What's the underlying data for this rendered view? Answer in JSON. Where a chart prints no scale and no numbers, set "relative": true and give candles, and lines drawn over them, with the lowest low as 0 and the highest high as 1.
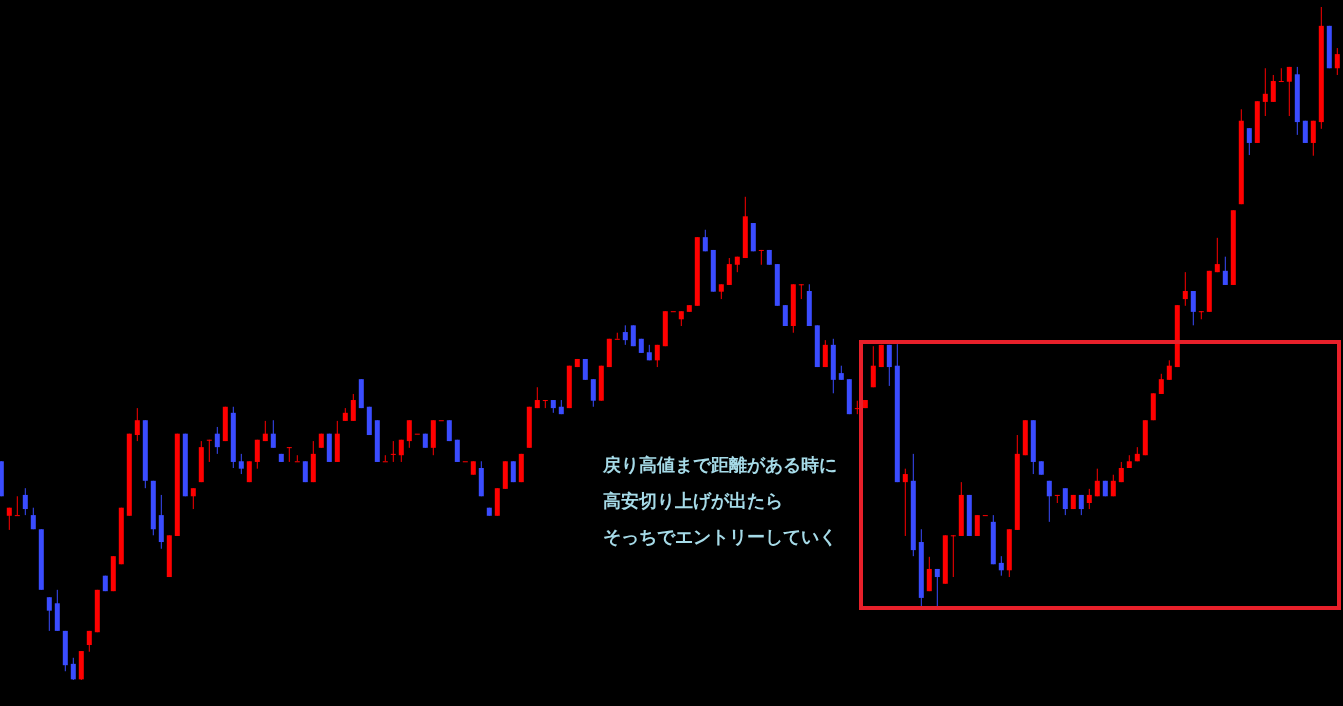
{
  "chart_data": {
    "type": "candlestick",
    "relative": true,
    "colors": [
      "#3a4cff",
      "#ff0000",
      "#ff0000",
      "#3a4cff",
      "#3a4cff",
      "#3a4cff",
      "#3a4cff",
      "#3a4cff",
      "#3a4cff",
      "#3a4cff",
      "#ff0000",
      "#ff0000",
      "#ff0000",
      "#3a4cff",
      "#ff0000",
      "#ff0000",
      "#ff0000",
      "#ff0000",
      "#3a4cff",
      "#3a4cff",
      "#3a4cff",
      "#ff0000",
      "#ff0000",
      "#3a4cff",
      "#ff0000",
      "#ff0000",
      "#ff0000",
      "#3a4cff",
      "#ff0000",
      "#3a4cff",
      "#3a4cff",
      "#ff0000",
      "#ff0000",
      "#ff0000",
      "#3a4cff",
      "#3a4cff",
      "#ff0000",
      "#ff0000",
      "#3a4cff",
      "#ff0000",
      "#ff0000",
      "#3a4cff",
      "#ff0000",
      "#ff0000",
      "#ff0000",
      "#3a4cff",
      "#3a4cff",
      "#3a4cff",
      "#ff0000",
      "#ff0000",
      "#ff0000",
      "#ff0000",
      "#ff0000",
      "#3a4cff",
      "#ff0000",
      "#ff0000",
      "#3a4cff",
      "#3a4cff",
      "#ff0000",
      "#ff0000",
      "#3a4cff",
      "#3a4cff",
      "#ff0000",
      "#ff0000",
      "#3a4cff",
      "#ff0000",
      "#ff0000",
      "#ff0000",
      "#ff0000",
      "#3a4cff",
      "#3a4cff",
      "#ff0000",
      "#ff0000",
      "#3a4cff",
      "#3a4cff",
      "#ff0000",
      "#ff0000",
      "#ff0000",
      "#3a4cff",
      "#3a4cff",
      "#3a4cff",
      "#3a4cff",
      "#ff0000",
      "#ff0000",
      "#ff0000",
      "#ff0000",
      "#ff0000",
      "#ff0000",
      "#3a4cff",
      "#3a4cff",
      "#ff0000",
      "#ff0000",
      "#ff0000",
      "#ff0000",
      "#3a4cff",
      "#ff0000",
      "#3a4cff",
      "#3a4cff",
      "#3a4cff",
      "#ff0000",
      "#ff0000",
      "#3a4cff",
      "#3a4cff",
      "#ff0000",
      "#3a4cff",
      "#3a4cff",
      "#3a4cff",
      "#ff0000",
      "#ff0000",
      "#ff0000",
      "#ff0000",
      "#3a4cff",
      "#3a4cff",
      "#ff0000",
      "#3a4cff",
      "#3a4cff",
      "#ff0000",
      "#3a4cff",
      "#ff0000",
      "#ff0000",
      "#ff0000",
      "#3a4cff",
      "#ff0000",
      "#ff0000",
      "#3a4cff",
      "#3a4cff",
      "#ff0000",
      "#ff0000",
      "#ff0000",
      "#3a4cff",
      "#3a4cff",
      "#3a4cff",
      "#ff0000",
      "#3a4cff",
      "#ff0000",
      "#3a4cff",
      "#ff0000",
      "#ff0000",
      "#3a4cff",
      "#ff0000",
      "#ff0000",
      "#ff0000",
      "#ff0000",
      "#ff0000",
      "#ff0000",
      "#ff0000",
      "#ff0000",
      "#ff0000",
      "#ff0000",
      "#3a4cff",
      "#ff0000",
      "#ff0000",
      "#ff0000",
      "#3a4cff",
      "#ff0000",
      "#ff0000",
      "#3a4cff",
      "#ff0000",
      "#ff0000",
      "#ff0000",
      "#ff0000",
      "#ff0000",
      "#3a4cff",
      "#3a4cff",
      "#ff0000",
      "#ff0000",
      "#3a4cff",
      "#ff0000"
    ],
    "annotations": [
      "戻り高値まで距離がある時に",
      "高安切り上げが出たら",
      "そっちでエントリーしていく"
    ],
    "categories": [
      null,
      null,
      null,
      null,
      null,
      null,
      null,
      null,
      null,
      null,
      null,
      null,
      null,
      null,
      null,
      null,
      null,
      null,
      null,
      null,
      null,
      null,
      null,
      null,
      null,
      null,
      null,
      null,
      null,
      null,
      null,
      null,
      null,
      null,
      null,
      null,
      null,
      null,
      null,
      null,
      null,
      null,
      null,
      null,
      null,
      null,
      null,
      null,
      null,
      null,
      null,
      null,
      null,
      null,
      null,
      null,
      null,
      null,
      null,
      null,
      null,
      null,
      null,
      null,
      null,
      null,
      null,
      null,
      null,
      null,
      null,
      null,
      null,
      null,
      null,
      null,
      null,
      null,
      null,
      null,
      null,
      null,
      null,
      null,
      null,
      null,
      null,
      null,
      null,
      null,
      null,
      null,
      null,
      null,
      null,
      null,
      null,
      null,
      null,
      null,
      null,
      null,
      null,
      null,
      null,
      null,
      null,
      null,
      null,
      null,
      null,
      null,
      null,
      null,
      null,
      null,
      null,
      null,
      null,
      null,
      null,
      null,
      null,
      null,
      null,
      null,
      null,
      null,
      null,
      null,
      null,
      null,
      null,
      null,
      null,
      null,
      null,
      null,
      null,
      null,
      null,
      null,
      null,
      null,
      null,
      null,
      null,
      null,
      null,
      null,
      null,
      null,
      null,
      null,
      null,
      null,
      null,
      null,
      null,
      null,
      null,
      null,
      null,
      null,
      null,
      null,
      null,
      null
    ],
    "ohlc": [
      [
        0.325,
        0.325,
        0.273,
        0.273
      ],
      [
        0.244,
        0.256,
        0.223,
        0.256
      ],
      [
        0.245,
        0.273,
        0.245,
        0.245
      ],
      [
        0.275,
        0.285,
        0.245,
        0.254
      ],
      [
        0.245,
        0.256,
        0.224,
        0.224
      ],
      [
        0.224,
        0.224,
        0.134,
        0.134
      ],
      [
        0.123,
        0.123,
        0.073,
        0.103
      ],
      [
        0.114,
        0.134,
        0.073,
        0.073
      ],
      [
        0.073,
        0.073,
        0.013,
        0.022
      ],
      [
        0.024,
        0.033,
        0,
        0.001
      ],
      [
        0.001,
        0.043,
        0,
        0.043
      ],
      [
        0.052,
        0.073,
        0.042,
        0.073
      ],
      [
        0.071,
        0.134,
        0.071,
        0.134
      ],
      [
        0.155,
        0.155,
        0.132,
        0.132
      ],
      [
        0.132,
        0.184,
        0.132,
        0.184
      ],
      [
        0.172,
        0.256,
        0.172,
        0.256
      ],
      [
        0.244,
        0.366,
        0.244,
        0.366
      ],
      [
        0.364,
        0.404,
        0.355,
        0.386
      ],
      [
        0.386,
        0.386,
        0.285,
        0.296
      ],
      [
        0.296,
        0.296,
        0.215,
        0.224
      ],
      [
        0.245,
        0.275,
        0.195,
        0.205
      ],
      [
        0.153,
        0.215,
        0.153,
        0.215
      ],
      [
        0.214,
        0.366,
        0.214,
        0.366
      ],
      [
        0.366,
        0.366,
        0.273,
        0.273
      ],
      [
        0.273,
        0.285,
        0.254,
        0.285
      ],
      [
        0.294,
        0.355,
        0.294,
        0.346
      ],
      [
        0.357,
        0.357,
        0.324,
        0.357
      ],
      [
        0.366,
        0.376,
        0.336,
        0.346
      ],
      [
        0.355,
        0.406,
        0.355,
        0.406
      ],
      [
        0.397,
        0.406,
        0.315,
        0.324
      ],
      [
        0.325,
        0.336,
        0.306,
        0.314
      ],
      [
        0.294,
        0.325,
        0.294,
        0.325
      ],
      [
        0.324,
        0.357,
        0.314,
        0.357
      ],
      [
        0.355,
        0.385,
        0.355,
        0.366
      ],
      [
        0.366,
        0.386,
        0.345,
        0.345
      ],
      [
        0.336,
        0.336,
        0.324,
        0.324
      ],
      [
        0.346,
        0.346,
        0.324,
        0.346
      ],
      [
        0.325,
        0.334,
        0.325,
        0.325
      ],
      [
        0.325,
        0.325,
        0.294,
        0.294
      ],
      [
        0.294,
        0.355,
        0.294,
        0.336
      ],
      [
        0.345,
        0.366,
        0.345,
        0.366
      ],
      [
        0.366,
        0.366,
        0.324,
        0.324
      ],
      [
        0.324,
        0.385,
        0.324,
        0.366
      ],
      [
        0.385,
        0.404,
        0.385,
        0.397
      ],
      [
        0.385,
        0.425,
        0.385,
        0.416
      ],
      [
        0.447,
        0.447,
        0.404,
        0.404
      ],
      [
        0.406,
        0.406,
        0.364,
        0.364
      ],
      [
        0.386,
        0.386,
        0.324,
        0.324
      ],
      [
        0.325,
        0.334,
        0.325,
        0.325
      ],
      [
        0.336,
        0.355,
        0.324,
        0.336
      ],
      [
        0.334,
        0.357,
        0.324,
        0.357
      ],
      [
        0.355,
        0.386,
        0.345,
        0.386
      ],
      [
        0.366,
        0.366,
        0.366,
        0.366
      ],
      [
        0.366,
        0.366,
        0.345,
        0.345
      ],
      [
        0.345,
        0.386,
        0.334,
        0.386
      ],
      [
        0.386,
        0.386,
        0.386,
        0.386
      ],
      [
        0.386,
        0.386,
        0.355,
        0.355
      ],
      [
        0.357,
        0.357,
        0.324,
        0.324
      ],
      [
        0.325,
        0.325,
        0.325,
        0.325
      ],
      [
        0.305,
        0.325,
        0.305,
        0.325
      ],
      [
        0.315,
        0.325,
        0.273,
        0.273
      ],
      [
        0.256,
        0.256,
        0.244,
        0.244
      ],
      [
        0.244,
        0.285,
        0.244,
        0.285
      ],
      [
        0.284,
        0.325,
        0.284,
        0.325
      ],
      [
        0.325,
        0.325,
        0.294,
        0.294
      ],
      [
        0.294,
        0.336,
        0.294,
        0.336
      ],
      [
        0.345,
        0.406,
        0.345,
        0.406
      ],
      [
        0.404,
        0.435,
        0.404,
        0.416
      ],
      [
        0.416,
        0.416,
        0.404,
        0.416
      ],
      [
        0.416,
        0.416,
        0.397,
        0.404
      ],
      [
        0.406,
        0.416,
        0.395,
        0.395
      ],
      [
        0.404,
        0.467,
        0.404,
        0.467
      ],
      [
        0.465,
        0.477,
        0.465,
        0.477
      ],
      [
        0.477,
        0.477,
        0.446,
        0.446
      ],
      [
        0.447,
        0.447,
        0.406,
        0.415
      ],
      [
        0.415,
        0.467,
        0.415,
        0.467
      ],
      [
        0.465,
        0.507,
        0.465,
        0.507
      ],
      [
        0.507,
        0.516,
        0.507,
        0.507
      ],
      [
        0.517,
        0.527,
        0.498,
        0.505
      ],
      [
        0.527,
        0.527,
        0.496,
        0.496
      ],
      [
        0.507,
        0.507,
        0.486,
        0.486
      ],
      [
        0.487,
        0.498,
        0.475,
        0.475
      ],
      [
        0.475,
        0.498,
        0.465,
        0.498
      ],
      [
        0.496,
        0.548,
        0.496,
        0.548
      ],
      [
        0.548,
        0.548,
        0.548,
        0.548
      ],
      [
        0.536,
        0.548,
        0.526,
        0.548
      ],
      [
        0.547,
        0.557,
        0.547,
        0.557
      ],
      [
        0.556,
        0.658,
        0.556,
        0.658
      ],
      [
        0.658,
        0.669,
        0.637,
        0.637
      ],
      [
        0.639,
        0.639,
        0.577,
        0.577
      ],
      [
        0.577,
        0.588,
        0.566,
        0.588
      ],
      [
        0.587,
        0.627,
        0.587,
        0.618
      ],
      [
        0.617,
        0.629,
        0.606,
        0.629
      ],
      [
        0.627,
        0.718,
        0.627,
        0.689
      ],
      [
        0.679,
        0.679,
        0.637,
        0.637
      ],
      [
        0.639,
        0.639,
        0.617,
        0.639
      ],
      [
        0.639,
        0.639,
        0.617,
        0.617
      ],
      [
        0.618,
        0.618,
        0.556,
        0.556
      ],
      [
        0.557,
        0.557,
        0.526,
        0.526
      ],
      [
        0.526,
        0.588,
        0.516,
        0.588
      ],
      [
        0.588,
        0.588,
        0.566,
        0.588
      ],
      [
        0.578,
        0.588,
        0.526,
        0.526
      ],
      [
        0.527,
        0.527,
        0.465,
        0.465
      ],
      [
        0.465,
        0.505,
        0.465,
        0.498
      ],
      [
        0.498,
        0.507,
        0.426,
        0.446
      ],
      [
        0.456,
        0.467,
        0.446,
        0.446
      ],
      [
        0.447,
        0.447,
        0.395,
        0.395
      ],
      [
        0.404,
        0.415,
        0.395,
        0.404
      ],
      [
        0.404,
        0.416,
        0.404,
        0.416
      ],
      [
        0.435,
        0.496,
        0.435,
        0.467
      ],
      [
        0.465,
        0.498,
        0.465,
        0.498
      ],
      [
        0.498,
        0.498,
        0.437,
        0.465
      ],
      [
        0.467,
        0.499,
        0.294,
        0.294
      ],
      [
        0.294,
        0.314,
        0.214,
        0.306
      ],
      [
        0.296,
        0.336,
        0.184,
        0.193
      ],
      [
        0.205,
        0.224,
        0.108,
        0.122
      ],
      [
        0.132,
        0.183,
        0.132,
        0.165
      ],
      [
        0.165,
        0.165,
        0.108,
        0.153
      ],
      [
        0.143,
        0.215,
        0.143,
        0.215
      ],
      [
        0.215,
        0.215,
        0.153,
        0.215
      ],
      [
        0.214,
        0.294,
        0.214,
        0.275
      ],
      [
        0.275,
        0.275,
        0.214,
        0.214
      ],
      [
        0.214,
        0.245,
        0.214,
        0.245
      ],
      [
        0.245,
        0.245,
        0.245,
        0.245
      ],
      [
        0.235,
        0.245,
        0.172,
        0.172
      ],
      [
        0.174,
        0.184,
        0.155,
        0.163
      ],
      [
        0.163,
        0.224,
        0.153,
        0.224
      ],
      [
        0.223,
        0.364,
        0.223,
        0.336
      ],
      [
        0.334,
        0.386,
        0.334,
        0.386
      ],
      [
        0.386,
        0.386,
        0.306,
        0.324
      ],
      [
        0.325,
        0.325,
        0.305,
        0.305
      ],
      [
        0.296,
        0.296,
        0.235,
        0.273
      ],
      [
        0.275,
        0.275,
        0.263,
        0.275
      ],
      [
        0.285,
        0.285,
        0.245,
        0.254
      ],
      [
        0.254,
        0.275,
        0.254,
        0.275
      ],
      [
        0.275,
        0.275,
        0.245,
        0.254
      ],
      [
        0.263,
        0.284,
        0.254,
        0.275
      ],
      [
        0.273,
        0.314,
        0.273,
        0.296
      ],
      [
        0.296,
        0.296,
        0.273,
        0.273
      ],
      [
        0.273,
        0.305,
        0.273,
        0.296
      ],
      [
        0.294,
        0.324,
        0.294,
        0.315
      ],
      [
        0.315,
        0.334,
        0.315,
        0.325
      ],
      [
        0.325,
        0.346,
        0.325,
        0.336
      ],
      [
        0.334,
        0.386,
        0.334,
        0.386
      ],
      [
        0.386,
        0.426,
        0.386,
        0.426
      ],
      [
        0.425,
        0.455,
        0.425,
        0.447
      ],
      [
        0.446,
        0.475,
        0.446,
        0.467
      ],
      [
        0.465,
        0.557,
        0.465,
        0.557
      ],
      [
        0.566,
        0.606,
        0.556,
        0.578
      ],
      [
        0.578,
        0.578,
        0.527,
        0.547
      ],
      [
        0.548,
        0.548,
        0.536,
        0.548
      ],
      [
        0.547,
        0.608,
        0.547,
        0.608
      ],
      [
        0.606,
        0.657,
        0.606,
        0.618
      ],
      [
        0.608,
        0.629,
        0.587,
        0.587
      ],
      [
        0.587,
        0.698,
        0.587,
        0.698
      ],
      [
        0.707,
        0.848,
        0.707,
        0.831
      ],
      [
        0.82,
        0.82,
        0.78,
        0.798
      ],
      [
        0.798,
        0.86,
        0.798,
        0.86
      ],
      [
        0.859,
        0.909,
        0.838,
        0.871
      ],
      [
        0.859,
        0.899,
        0.859,
        0.89
      ],
      [
        0.89,
        0.909,
        0.89,
        0.89
      ],
      [
        0.889,
        0.911,
        0.838,
        0.911
      ],
      [
        0.9,
        0.911,
        0.81,
        0.829
      ],
      [
        0.831,
        0.831,
        0.798,
        0.798
      ],
      [
        0.798,
        0.831,
        0.779,
        0.831
      ],
      [
        0.829,
        1,
        0.819,
        0.972
      ],
      [
        0.972,
        0.972,
        0.909,
        0.909
      ],
      [
        0.909,
        0.939,
        0.899,
        0.93
      ]
    ]
  }
}
